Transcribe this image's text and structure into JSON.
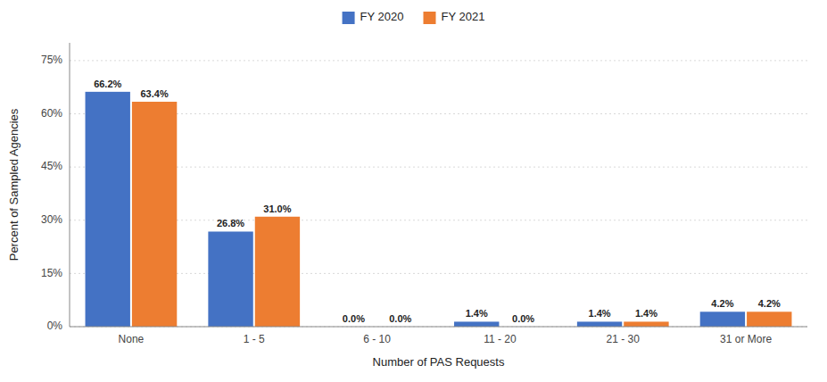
{
  "chart_data": {
    "type": "bar",
    "categories": [
      "None",
      "1 - 5",
      "6 - 10",
      "11 - 20",
      "21 - 30",
      "31 or More"
    ],
    "series": [
      {
        "name": "FY 2020",
        "color": "#4472C4",
        "values": [
          66.2,
          26.8,
          0.0,
          1.4,
          1.4,
          4.2
        ],
        "value_labels": [
          "66.2%",
          "26.8%",
          "0.0%",
          "1.4%",
          "1.4%",
          "4.2%"
        ]
      },
      {
        "name": "FY 2021",
        "color": "#ED7D31",
        "values": [
          63.4,
          31.0,
          0.0,
          0.0,
          1.4,
          4.2
        ],
        "value_labels": [
          "63.4%",
          "31.0%",
          "0.0%",
          "0.0%",
          "1.4%",
          "4.2%"
        ]
      }
    ],
    "xlabel": "Number of PAS Requests",
    "ylabel": "Percent of Sampled Agencies",
    "ylim": [
      0,
      80
    ],
    "yticks": [
      {
        "value": 0,
        "label": "0%"
      },
      {
        "value": 15,
        "label": "15%"
      },
      {
        "value": 30,
        "label": "30%"
      },
      {
        "value": 45,
        "label": "45%"
      },
      {
        "value": 60,
        "label": "60%"
      },
      {
        "value": 75,
        "label": "75%"
      }
    ],
    "grid": true,
    "legend": "top",
    "data_labels": true
  }
}
